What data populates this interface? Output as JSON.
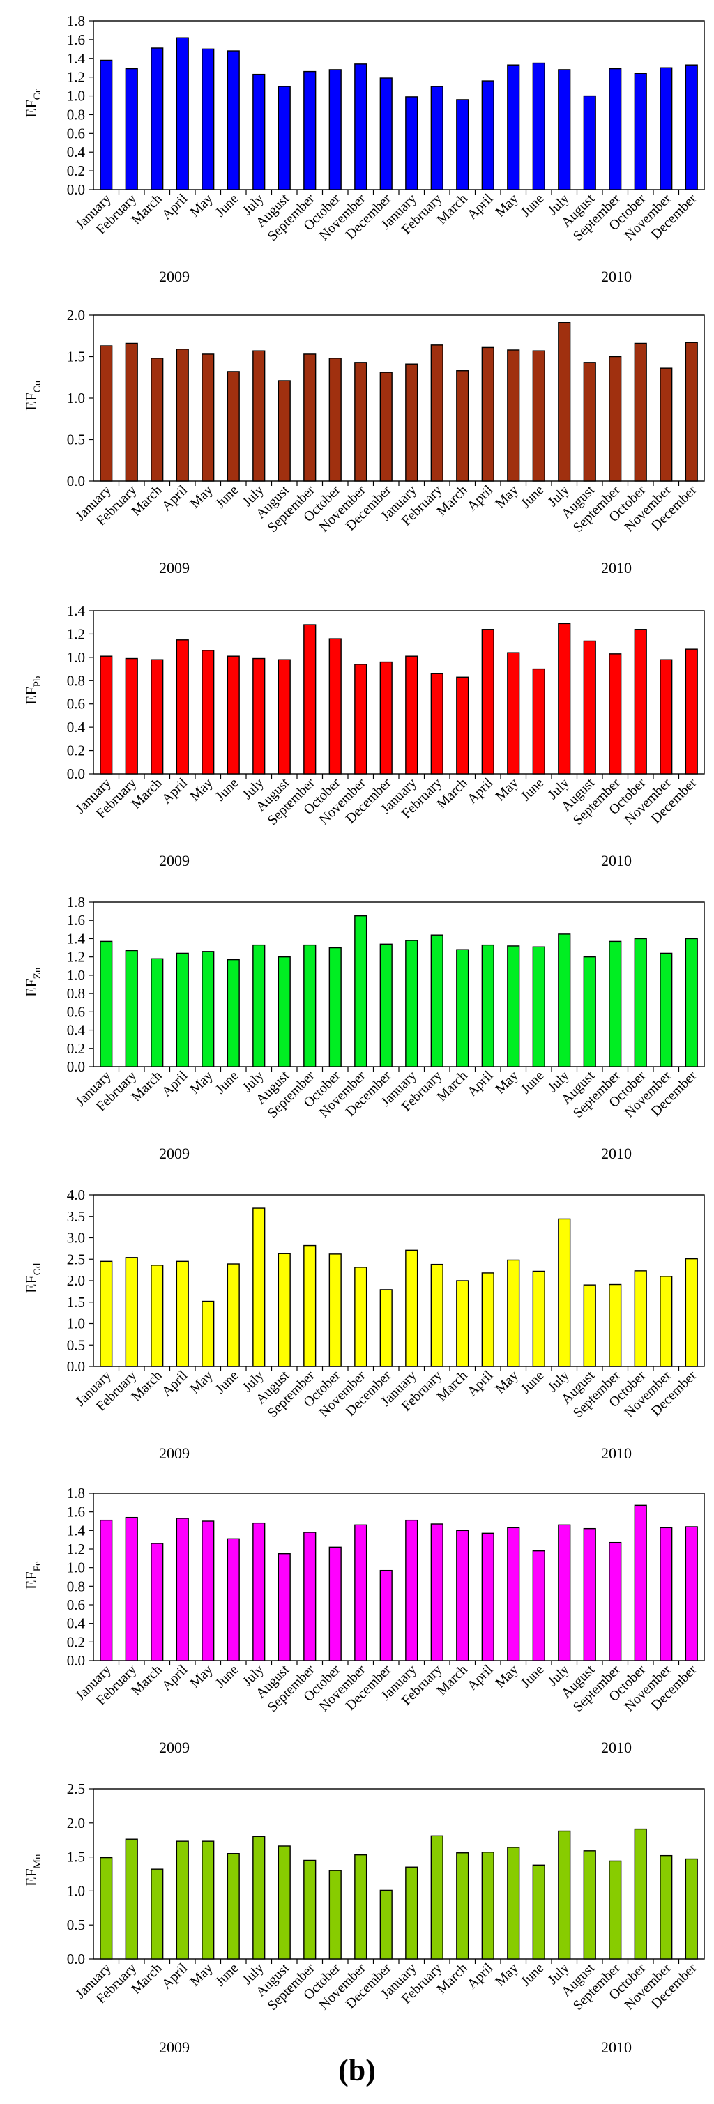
{
  "panel_label": "(b)",
  "chart_data": [
    {
      "type": "bar",
      "ylabel_main": "EF",
      "ylabel_sub": "Cr",
      "color": "#0000FF",
      "ylim": [
        0,
        1.8
      ],
      "yticks": [
        "0.0",
        "0.2",
        "0.4",
        "0.6",
        "0.8",
        "1.0",
        "1.2",
        "1.4",
        "1.6",
        "1.8"
      ],
      "categories": [
        "January",
        "February",
        "March",
        "April",
        "May",
        "June",
        "July",
        "August",
        "September",
        "October",
        "November",
        "December",
        "January",
        "February",
        "March",
        "April",
        "May",
        "June",
        "July",
        "August",
        "September",
        "October",
        "November",
        "December"
      ],
      "values": [
        1.38,
        1.29,
        1.51,
        1.62,
        1.5,
        1.48,
        1.23,
        1.1,
        1.26,
        1.28,
        1.34,
        1.19,
        0.99,
        1.1,
        0.96,
        1.16,
        1.33,
        1.35,
        1.28,
        1.0,
        1.29,
        1.24,
        1.3,
        1.33
      ],
      "years": [
        "2009",
        "2010"
      ]
    },
    {
      "type": "bar",
      "ylabel_main": "EF",
      "ylabel_sub": "Cu",
      "color": "#A0300F",
      "ylim": [
        0,
        2.0
      ],
      "yticks": [
        "0.0",
        "0.5",
        "1.0",
        "1.5",
        "2.0"
      ],
      "categories": [
        "January",
        "February",
        "March",
        "April",
        "May",
        "June",
        "July",
        "August",
        "September",
        "October",
        "November",
        "December",
        "January",
        "February",
        "March",
        "April",
        "May",
        "June",
        "July",
        "August",
        "September",
        "October",
        "November",
        "December"
      ],
      "values": [
        1.63,
        1.66,
        1.48,
        1.59,
        1.53,
        1.32,
        1.57,
        1.21,
        1.53,
        1.48,
        1.43,
        1.31,
        1.41,
        1.64,
        1.33,
        1.61,
        1.58,
        1.57,
        1.91,
        1.43,
        1.5,
        1.66,
        1.36,
        1.67
      ],
      "years": [
        "2009",
        "2010"
      ]
    },
    {
      "type": "bar",
      "ylabel_main": "EF",
      "ylabel_sub": "Pb",
      "color": "#FF0000",
      "ylim": [
        0,
        1.4
      ],
      "yticks": [
        "0.0",
        "0.2",
        "0.4",
        "0.6",
        "0.8",
        "1.0",
        "1.2",
        "1.4"
      ],
      "categories": [
        "January",
        "February",
        "March",
        "April",
        "May",
        "June",
        "July",
        "August",
        "September",
        "October",
        "November",
        "December",
        "January",
        "February",
        "March",
        "April",
        "May",
        "June",
        "July",
        "August",
        "September",
        "October",
        "November",
        "December"
      ],
      "values": [
        1.01,
        0.99,
        0.98,
        1.15,
        1.06,
        1.01,
        0.99,
        0.98,
        1.28,
        1.16,
        0.94,
        0.96,
        1.01,
        0.86,
        0.83,
        1.24,
        1.04,
        0.9,
        1.29,
        1.14,
        1.03,
        1.24,
        0.98,
        1.07
      ],
      "years": [
        "2009",
        "2010"
      ]
    },
    {
      "type": "bar",
      "ylabel_main": "EF",
      "ylabel_sub": "Zn",
      "color": "#00EE22",
      "ylim": [
        0,
        1.8
      ],
      "yticks": [
        "0.0",
        "0.2",
        "0.4",
        "0.6",
        "0.8",
        "1.0",
        "1.2",
        "1.4",
        "1.6",
        "1.8"
      ],
      "categories": [
        "January",
        "February",
        "March",
        "April",
        "May",
        "June",
        "July",
        "August",
        "September",
        "October",
        "November",
        "December",
        "January",
        "February",
        "March",
        "April",
        "May",
        "June",
        "July",
        "August",
        "September",
        "October",
        "November",
        "December"
      ],
      "values": [
        1.37,
        1.27,
        1.18,
        1.24,
        1.26,
        1.17,
        1.33,
        1.2,
        1.33,
        1.3,
        1.65,
        1.34,
        1.38,
        1.44,
        1.28,
        1.33,
        1.32,
        1.31,
        1.45,
        1.2,
        1.37,
        1.4,
        1.24,
        1.4
      ],
      "years": [
        "2009",
        "2010"
      ]
    },
    {
      "type": "bar",
      "ylabel_main": "EF",
      "ylabel_sub": "Cd",
      "color": "#FFFF00",
      "ylim": [
        0,
        4.0
      ],
      "yticks": [
        "0.0",
        "0.5",
        "1.0",
        "1.5",
        "2.0",
        "2.5",
        "3.0",
        "3.5",
        "4.0"
      ],
      "categories": [
        "January",
        "February",
        "March",
        "April",
        "May",
        "June",
        "July",
        "August",
        "September",
        "October",
        "November",
        "December",
        "January",
        "February",
        "March",
        "April",
        "May",
        "June",
        "July",
        "August",
        "September",
        "October",
        "November",
        "December"
      ],
      "values": [
        2.45,
        2.54,
        2.36,
        2.45,
        1.52,
        2.39,
        3.69,
        2.63,
        2.82,
        2.62,
        2.31,
        1.79,
        2.71,
        2.38,
        2.0,
        2.18,
        2.48,
        2.22,
        3.44,
        1.9,
        1.91,
        2.23,
        2.1,
        2.51
      ],
      "years": [
        "2009",
        "2010"
      ]
    },
    {
      "type": "bar",
      "ylabel_main": "EF",
      "ylabel_sub": "Fe",
      "color": "#FF00FF",
      "ylim": [
        0,
        1.8
      ],
      "yticks": [
        "0.0",
        "0.2",
        "0.4",
        "0.6",
        "0.8",
        "1.0",
        "1.2",
        "1.4",
        "1.6",
        "1.8"
      ],
      "categories": [
        "January",
        "February",
        "March",
        "April",
        "May",
        "June",
        "July",
        "August",
        "September",
        "October",
        "November",
        "December",
        "January",
        "February",
        "March",
        "April",
        "May",
        "June",
        "July",
        "August",
        "September",
        "October",
        "November",
        "December"
      ],
      "values": [
        1.51,
        1.54,
        1.26,
        1.53,
        1.5,
        1.31,
        1.48,
        1.15,
        1.38,
        1.22,
        1.46,
        0.97,
        1.51,
        1.47,
        1.4,
        1.37,
        1.43,
        1.18,
        1.46,
        1.42,
        1.27,
        1.67,
        1.43,
        1.44
      ],
      "years": [
        "2009",
        "2010"
      ]
    },
    {
      "type": "bar",
      "ylabel_main": "EF",
      "ylabel_sub": "Mn",
      "color": "#88CC00",
      "ylim": [
        0,
        2.5
      ],
      "yticks": [
        "0.0",
        "0.5",
        "1.0",
        "1.5",
        "2.0",
        "2.5"
      ],
      "categories": [
        "January",
        "February",
        "March",
        "April",
        "May",
        "June",
        "July",
        "August",
        "September",
        "October",
        "November",
        "December",
        "January",
        "February",
        "March",
        "April",
        "May",
        "June",
        "July",
        "August",
        "September",
        "October",
        "November",
        "December"
      ],
      "values": [
        1.49,
        1.76,
        1.32,
        1.73,
        1.73,
        1.55,
        1.8,
        1.66,
        1.45,
        1.3,
        1.53,
        1.01,
        1.35,
        1.81,
        1.56,
        1.57,
        1.64,
        1.38,
        1.88,
        1.59,
        1.44,
        1.91,
        1.52,
        1.47
      ],
      "years": [
        "2009",
        "2010"
      ]
    }
  ]
}
